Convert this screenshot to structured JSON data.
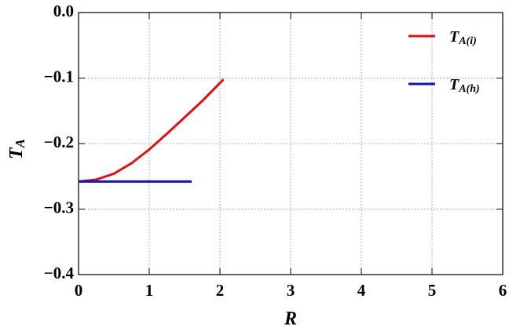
{
  "chart_data": {
    "type": "line",
    "x_label": "R",
    "y_label": "TA",
    "xlim": [
      0,
      6
    ],
    "ylim": [
      -0.4,
      0
    ],
    "xticks": [
      0,
      1,
      2,
      3,
      4,
      5,
      6
    ],
    "yticks": [
      {
        "value": 0,
        "label": "0.0"
      },
      {
        "value": -0.1,
        "label": "−0.1"
      },
      {
        "value": -0.2,
        "label": "−0.2"
      },
      {
        "value": -0.3,
        "label": "−0.3"
      },
      {
        "value": -0.4,
        "label": "−0.4"
      }
    ],
    "grid": true,
    "legend": "upper right",
    "series": [
      {
        "name": "TA(i)",
        "color": "#e01010",
        "x": [
          0,
          0.25,
          0.5,
          0.75,
          1,
          1.25,
          1.5,
          1.75,
          2.05
        ],
        "values": [
          -0.258,
          -0.255,
          -0.246,
          -0.23,
          -0.209,
          -0.185,
          -0.16,
          -0.135,
          -0.102
        ]
      },
      {
        "name": "TA(h)",
        "color": "#1010c8",
        "x": [
          0,
          1.6
        ],
        "values": [
          -0.258,
          -0.258
        ]
      }
    ]
  }
}
